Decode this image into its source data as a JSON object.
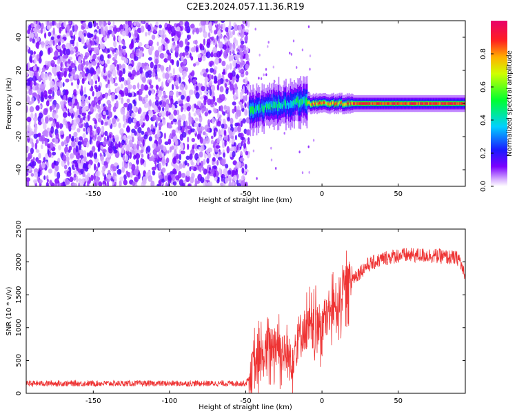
{
  "figure_title": "C2E3.2024.057.11.36.R19",
  "colors": {
    "snr_line": "#ee3333",
    "spectrogram_noise": "#6a00e0",
    "spectrogram_peak": "#e8003a"
  },
  "chart_data": [
    {
      "type": "heatmap",
      "title": "",
      "xlabel": "Height of straight line (km)",
      "ylabel": "Frequency (Hz)",
      "xlim": [
        -194,
        94
      ],
      "ylim": [
        -50,
        50
      ],
      "xticks": [
        -150,
        -100,
        -50,
        0,
        50
      ],
      "yticks": [
        -40,
        -20,
        0,
        20,
        40
      ],
      "colorbar": {
        "label": "Normalized spectral amplitude",
        "range": [
          0,
          1
        ],
        "ticks": [
          0.0,
          0.2,
          0.4,
          0.6,
          0.8
        ],
        "colormap": "rainbow (white-purple-blue-cyan-green-yellow-red-magenta)"
      },
      "regions": [
        {
          "x_range": [
            -194,
            -48
          ],
          "description": "broadband noise across all frequencies, amplitude ~0.1-0.3"
        },
        {
          "x_range": [
            -48,
            -10
          ],
          "center_frequency_hz": [
            -4,
            4
          ],
          "amplitude": 0.45
        },
        {
          "x_range": [
            -10,
            20
          ],
          "center_frequency_hz": [
            0,
            0
          ],
          "amplitude": 0.85
        },
        {
          "x_range": [
            20,
            94
          ],
          "center_frequency_hz": [
            0,
            0
          ],
          "amplitude": 0.9
        }
      ]
    },
    {
      "type": "line",
      "title": "",
      "xlabel": "Height of straight line (km)",
      "ylabel": "SNR (10 * v/v)",
      "xlim": [
        -194,
        94
      ],
      "ylim": [
        0,
        2500
      ],
      "xticks": [
        -150,
        -100,
        -50,
        0,
        50
      ],
      "yticks": [
        0,
        500,
        1000,
        1500,
        2000,
        2500
      ],
      "series": [
        {
          "x": [
            -194,
            -180,
            -160,
            -140,
            -120,
            -100,
            -80,
            -60,
            -50,
            -45,
            -40,
            -35,
            -30,
            -25,
            -20,
            -15,
            -10,
            -5,
            0,
            5,
            10,
            15,
            20,
            25,
            30,
            40,
            50,
            60,
            70,
            80,
            90,
            94
          ],
          "values": [
            150,
            150,
            150,
            150,
            150,
            150,
            150,
            150,
            150,
            350,
            500,
            700,
            800,
            600,
            500,
            900,
            1000,
            900,
            1100,
            1200,
            1400,
            1600,
            1750,
            1850,
            1950,
            2050,
            2100,
            2100,
            2100,
            2080,
            2050,
            1750
          ]
        }
      ]
    }
  ]
}
